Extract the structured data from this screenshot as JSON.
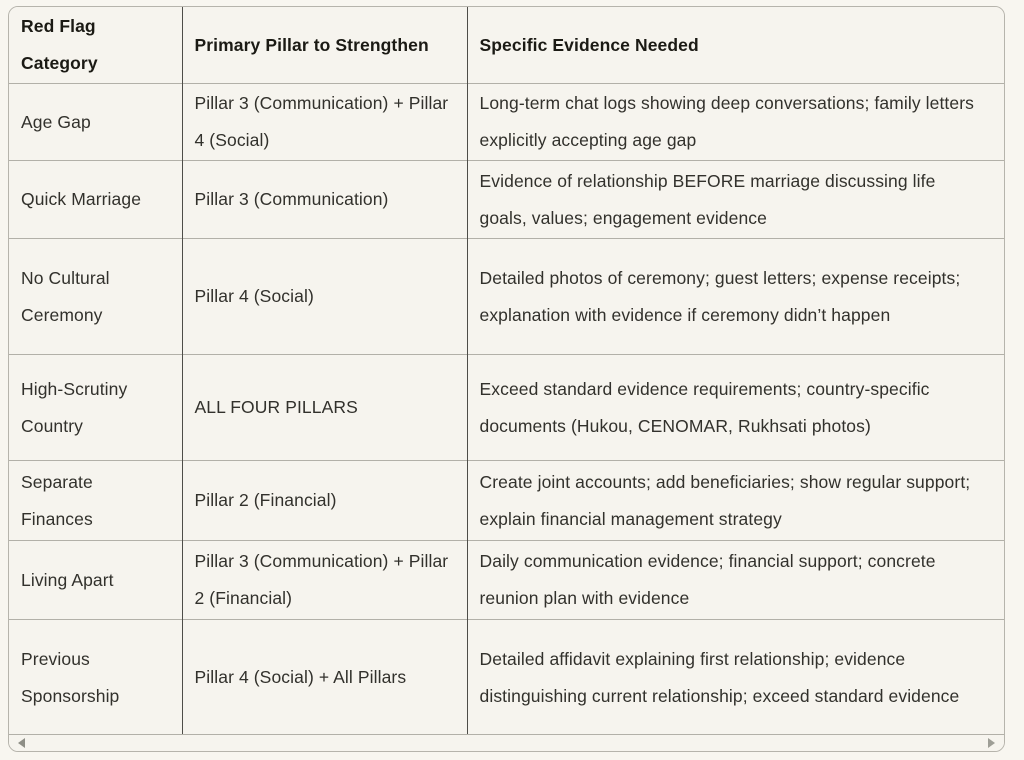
{
  "table": {
    "headers": [
      "Red Flag Category",
      "Primary Pillar to Strengthen",
      "Specific Evidence Needed"
    ],
    "rows": [
      {
        "category": "Age Gap",
        "pillar": "Pillar 3 (Communication) + Pillar 4 (Social)",
        "evidence": "Long-term chat logs showing deep conversations; family letters explicitly accepting age gap"
      },
      {
        "category": "Quick Marriage",
        "pillar": "Pillar 3 (Communication)",
        "evidence": "Evidence of relationship BEFORE marriage discussing life goals, values; engagement evidence"
      },
      {
        "category": "No Cultural Ceremony",
        "pillar": "Pillar 4 (Social)",
        "evidence": "Detailed photos of ceremony; guest letters; expense receipts; explanation with evidence if ceremony didn’t happen"
      },
      {
        "category": "High-Scrutiny Country",
        "pillar": "ALL FOUR PILLARS",
        "evidence": "Exceed standard evidence requirements; country-specific documents (Hukou, CENOMAR, Rukhsati photos)"
      },
      {
        "category": "Separate Finances",
        "pillar": "Pillar 2 (Financial)",
        "evidence": "Create joint accounts; add beneficiaries; show regular support; explain financial management strategy"
      },
      {
        "category": "Living Apart",
        "pillar": "Pillar 3 (Communication) + Pillar 2 (Financial)",
        "evidence": "Daily communication evidence; financial support; concrete reunion plan with evidence"
      },
      {
        "category": "Previous Sponsorship",
        "pillar": "Pillar 4 (Social) + All Pillars",
        "evidence": "Detailed affidavit explaining first relationship; evidence distinguishing current relationship; exceed standard evidence"
      }
    ]
  },
  "scrollbar": {
    "left_icon": "scroll-left-arrow",
    "right_icon": "scroll-right-arrow"
  },
  "colors": {
    "page_background": "#f8f6f0",
    "cell_background": "#f6f4ee",
    "outer_border": "#b6b4ac",
    "horizontal_border": "#b2b0a8",
    "vertical_border": "#4e4d48",
    "header_text": "#1b1a14",
    "body_text": "#32312c",
    "arrow": "#8e8e86"
  }
}
